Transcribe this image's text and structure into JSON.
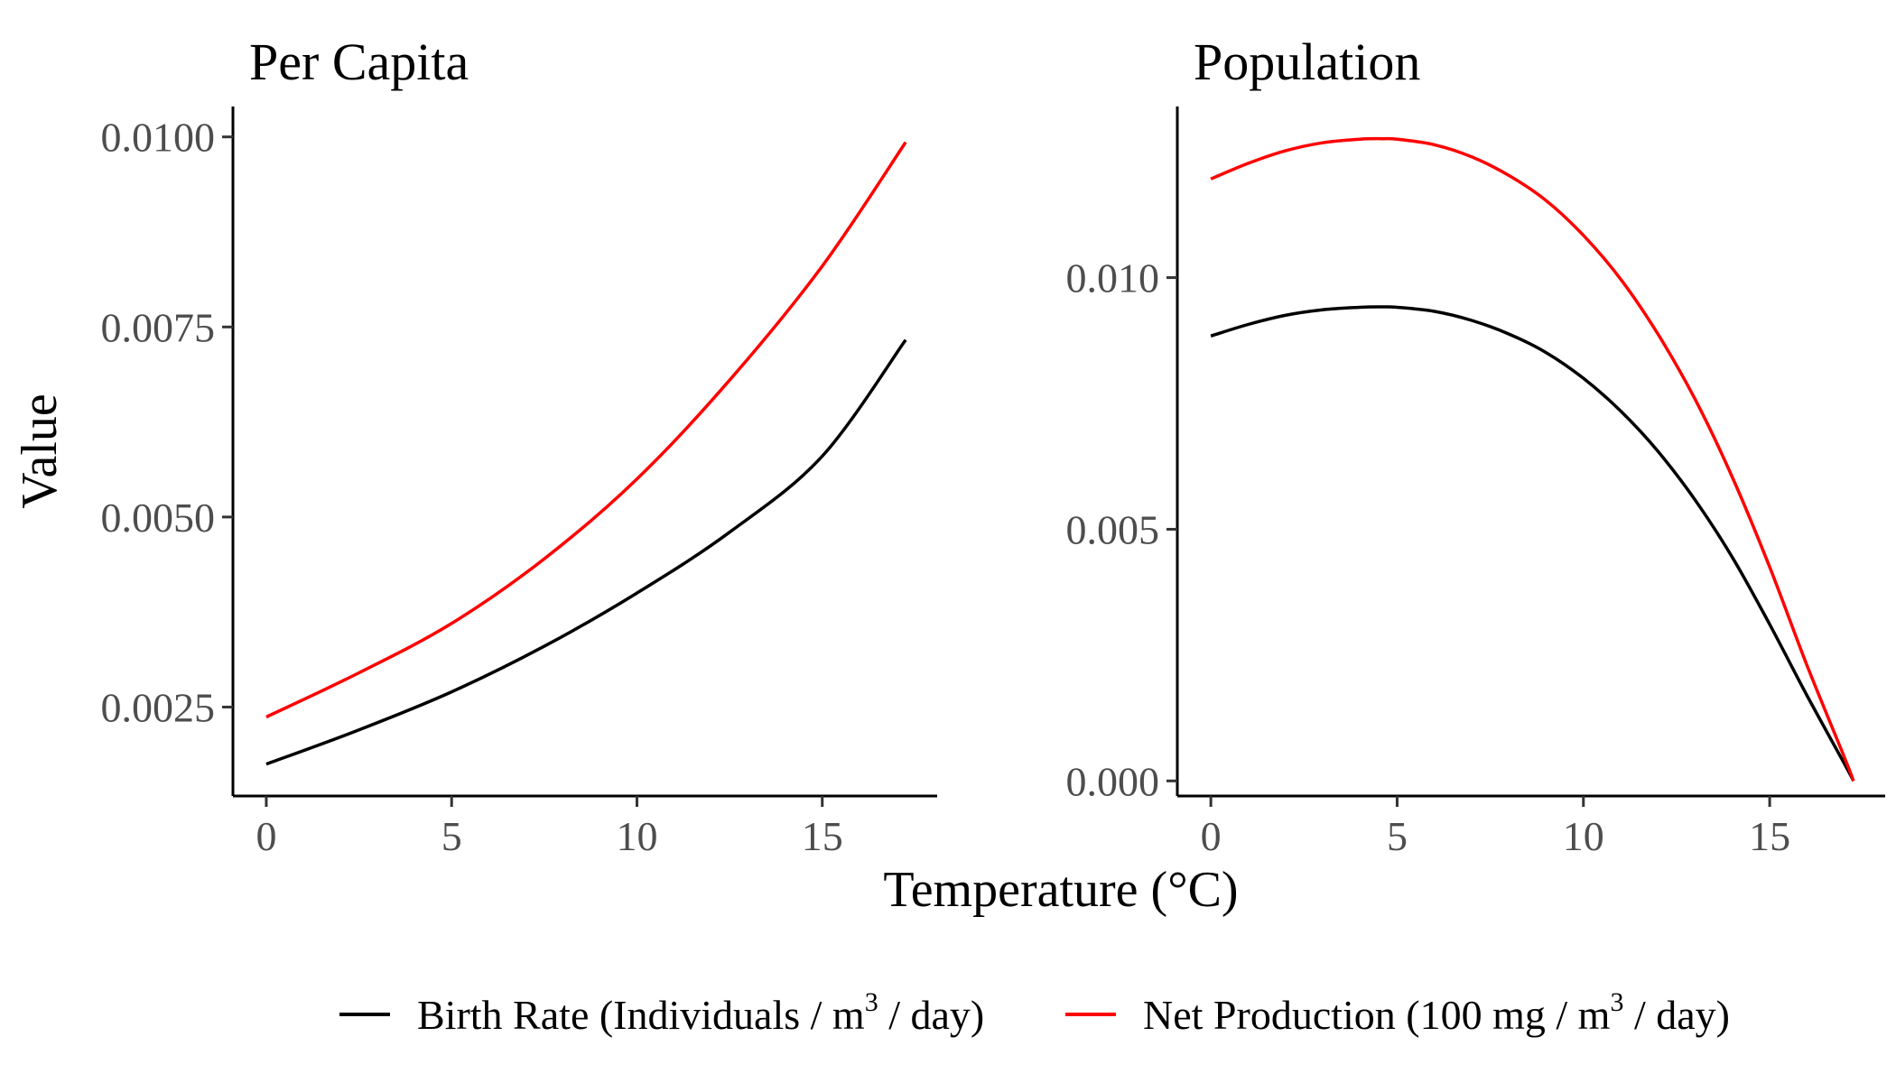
{
  "figure": {
    "xlabel": "Temperature (°C)",
    "ylabel": "Value"
  },
  "legend": {
    "position": "bottom",
    "items": [
      {
        "label": "Birth Rate (Individuals / m",
        "sup": "3",
        "label_end": " / day)",
        "color": "#000000"
      },
      {
        "label": "Net Production (100 mg / m",
        "sup": "3",
        "label_end": " / day)",
        "color": "#ff0000"
      }
    ]
  },
  "chart_data": [
    {
      "type": "line",
      "title": "Per Capita",
      "xlim": [
        -0.9,
        18.1
      ],
      "ylim": [
        0.00133,
        0.0104
      ],
      "xticks": [
        0,
        5,
        10,
        15
      ],
      "xtick_labels": [
        "0",
        "5",
        "10",
        "15"
      ],
      "yticks": [
        0.0025,
        0.005,
        0.0075,
        0.01
      ],
      "ytick_labels": [
        "0.0025",
        "0.0050",
        "0.0075",
        "0.0100"
      ],
      "grid": false,
      "series": [
        {
          "color": "#000000",
          "x": [
            0,
            2.5,
            5,
            7.5,
            10,
            12.5,
            15,
            17.25
          ],
          "y": [
            0.00175,
            0.0022,
            0.0027,
            0.0033,
            0.004,
            0.0048,
            0.0058,
            0.00733
          ]
        },
        {
          "color": "#ff0000",
          "x": [
            0,
            2.5,
            5,
            7.5,
            10,
            12.5,
            15,
            17.25
          ],
          "y": [
            0.00237,
            0.00295,
            0.0036,
            0.00445,
            0.0055,
            0.0068,
            0.0083,
            0.00993
          ]
        }
      ]
    },
    {
      "type": "line",
      "title": "Population",
      "xlim": [
        -0.9,
        18.1
      ],
      "ylim": [
        -0.0003,
        0.0134
      ],
      "xticks": [
        0,
        5,
        10,
        15
      ],
      "xtick_labels": [
        "0",
        "5",
        "10",
        "15"
      ],
      "yticks": [
        0,
        0.005,
        0.01
      ],
      "ytick_labels": [
        "0.000",
        "0.005",
        "0.010"
      ],
      "grid": false,
      "series": [
        {
          "color": "#000000",
          "x": [
            0,
            1,
            2,
            3,
            4,
            4.6,
            5,
            6,
            7,
            8,
            9,
            10,
            11,
            12,
            13,
            14,
            15,
            16,
            17,
            17.25
          ],
          "y": [
            0.00884,
            0.00907,
            0.00925,
            0.00936,
            0.00941,
            0.00942,
            0.00941,
            0.00933,
            0.00915,
            0.00888,
            0.00851,
            0.008,
            0.00735,
            0.00655,
            0.00558,
            0.00444,
            0.00311,
            0.0017,
            0.00035,
            0.0
          ]
        },
        {
          "color": "#ff0000",
          "x": [
            0,
            1,
            2,
            3,
            4,
            4.6,
            5,
            6,
            7,
            8,
            9,
            10,
            11,
            12,
            13,
            14,
            15,
            16,
            17,
            17.25
          ],
          "y": [
            0.01196,
            0.01227,
            0.01252,
            0.01268,
            0.01275,
            0.01276,
            0.01275,
            0.01264,
            0.0124,
            0.01203,
            0.01153,
            0.01084,
            0.00997,
            0.00888,
            0.00758,
            0.00603,
            0.00425,
            0.0023,
            0.00048,
            0.0
          ]
        }
      ]
    }
  ]
}
